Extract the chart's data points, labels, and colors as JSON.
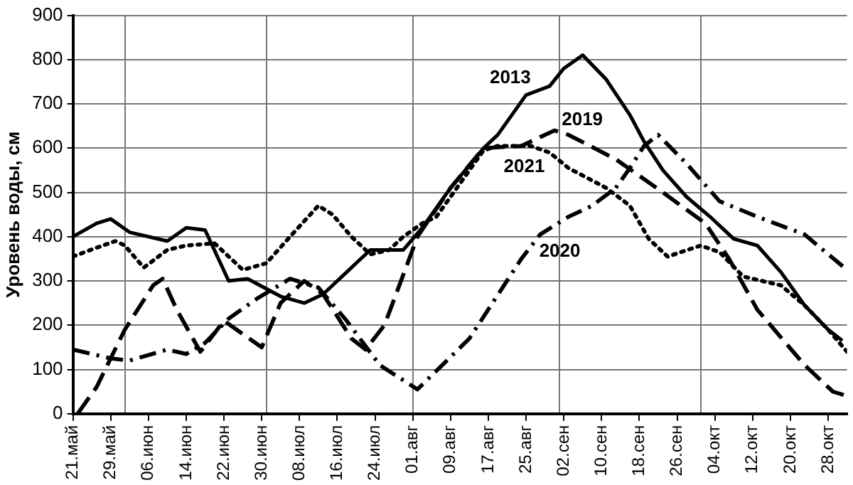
{
  "chart_data": {
    "type": "line",
    "ylabel": "Уровень воды, см",
    "xlim": [
      "--05-21",
      "--11-01"
    ],
    "xticks": [
      {
        "value": "--05-21",
        "label": "21.май"
      },
      {
        "value": "--05-29",
        "label": "29.май"
      },
      {
        "value": "--06-01",
        "label": null
      },
      {
        "value": "--06-06",
        "label": "06.июн"
      },
      {
        "value": "--06-14",
        "label": "14.июн"
      },
      {
        "value": "--06-22",
        "label": "22.июн"
      },
      {
        "value": "--06-30",
        "label": "30.июн"
      },
      {
        "value": "--07-01",
        "label": null
      },
      {
        "value": "--07-08",
        "label": "08.июл"
      },
      {
        "value": "--07-16",
        "label": "16.июл"
      },
      {
        "value": "--07-24",
        "label": "24.июл"
      },
      {
        "value": "--08-01",
        "label": "01.авг"
      },
      {
        "value": "--08-09",
        "label": "09.авг"
      },
      {
        "value": "--08-17",
        "label": "17.авг"
      },
      {
        "value": "--08-25",
        "label": "25.авг"
      },
      {
        "value": "--09-01",
        "label": null
      },
      {
        "value": "--09-02",
        "label": "02.сен"
      },
      {
        "value": "--09-10",
        "label": "10.сен"
      },
      {
        "value": "--09-18",
        "label": "18.сен"
      },
      {
        "value": "--09-26",
        "label": "26.сен"
      },
      {
        "value": "--10-01",
        "label": null
      },
      {
        "value": "--10-04",
        "label": "04.окт"
      },
      {
        "value": "--10-12",
        "label": "12.окт"
      },
      {
        "value": "--10-20",
        "label": "20.окт"
      },
      {
        "value": "--10-28",
        "label": "28.окт"
      }
    ],
    "ylim": [
      0,
      900
    ],
    "yticks": [
      0,
      100,
      200,
      300,
      400,
      500,
      600,
      700,
      800,
      900
    ],
    "grid": true,
    "legend": false,
    "marker": "none",
    "series": [
      {
        "name": "2013",
        "color": "#000000",
        "line_style": "solid",
        "x": [
          "--05-21",
          "--05-26",
          "--05-29",
          "--06-02",
          "--06-10",
          "--06-14",
          "--06-18",
          "--06-23",
          "--06-27",
          "--07-04",
          "--07-09",
          "--07-13",
          "--07-18",
          "--07-23",
          "--07-30",
          "--08-03",
          "--08-09",
          "--08-16",
          "--08-19",
          "--08-25",
          "--08-30",
          "--09-02",
          "--09-06",
          "--09-11",
          "--09-16",
          "--09-19",
          "--09-23",
          "--09-28",
          "--10-03",
          "--10-08",
          "--10-13",
          "--10-18",
          "--10-23",
          "--10-28",
          "--10-31"
        ],
        "values": [
          400,
          430,
          440,
          410,
          390,
          420,
          415,
          300,
          305,
          265,
          250,
          270,
          320,
          370,
          370,
          420,
          510,
          600,
          630,
          720,
          740,
          780,
          810,
          755,
          675,
          615,
          550,
          490,
          445,
          395,
          380,
          320,
          245,
          190,
          165
        ]
      },
      {
        "name": "2019",
        "color": "#000000",
        "line_style": "dashed",
        "x": [
          "--05-22",
          "--05-26",
          "--06-01",
          "--06-07",
          "--06-09",
          "--06-12",
          "--06-17",
          "--06-22",
          "--06-30",
          "--07-04",
          "--07-09",
          "--07-13",
          "--07-19",
          "--07-22",
          "--07-26",
          "--08-02",
          "--08-09",
          "--08-16",
          "--08-24",
          "--08-31",
          "--09-03",
          "--09-13",
          "--09-23",
          "--10-02",
          "--10-07",
          "--10-13",
          "--10-23",
          "--10-29",
          "--11-01"
        ],
        "values": [
          0,
          60,
          190,
          290,
          305,
          235,
          140,
          210,
          150,
          250,
          300,
          270,
          170,
          145,
          200,
          400,
          510,
          600,
          605,
          640,
          630,
          575,
          500,
          430,
          350,
          235,
          110,
          50,
          40
        ]
      },
      {
        "name": "2020",
        "color": "#000000",
        "line_style": "dashdot",
        "x": [
          "--05-21",
          "--05-29",
          "--06-02",
          "--06-10",
          "--06-14",
          "--06-18",
          "--06-23",
          "--06-29",
          "--07-06",
          "--07-12",
          "--07-18",
          "--07-25",
          "--08-02",
          "--08-13",
          "--08-24",
          "--08-28",
          "--09-03",
          "--09-08",
          "--09-13",
          "--09-16",
          "--09-19",
          "--09-22",
          "--09-28",
          "--10-05",
          "--10-13",
          "--10-23",
          "--11-01"
        ],
        "values": [
          145,
          125,
          120,
          145,
          135,
          160,
          215,
          260,
          305,
          285,
          210,
          110,
          55,
          170,
          350,
          405,
          445,
          470,
          510,
          555,
          605,
          630,
          565,
          480,
          445,
          405,
          325
        ]
      },
      {
        "name": "2021",
        "color": "#000000",
        "line_style": "dotted",
        "x": [
          "--05-21",
          "--05-26",
          "--05-30",
          "--06-01",
          "--06-05",
          "--06-10",
          "--06-14",
          "--06-20",
          "--06-26",
          "--07-01",
          "--07-06",
          "--07-12",
          "--07-15",
          "--07-19",
          "--07-23",
          "--07-27",
          "--07-30",
          "--08-03",
          "--08-06",
          "--08-16",
          "--08-19",
          "--08-26",
          "--08-30",
          "--09-03",
          "--09-11",
          "--09-16",
          "--09-20",
          "--09-24",
          "--10-01",
          "--10-05",
          "--10-10",
          "--10-18",
          "--10-23",
          "--10-28",
          "--11-01"
        ],
        "values": [
          355,
          375,
          390,
          380,
          330,
          370,
          380,
          385,
          325,
          340,
          400,
          470,
          450,
          400,
          360,
          370,
          400,
          430,
          445,
          595,
          605,
          605,
          590,
          555,
          510,
          470,
          395,
          355,
          380,
          365,
          310,
          290,
          245,
          190,
          140
        ]
      }
    ]
  }
}
